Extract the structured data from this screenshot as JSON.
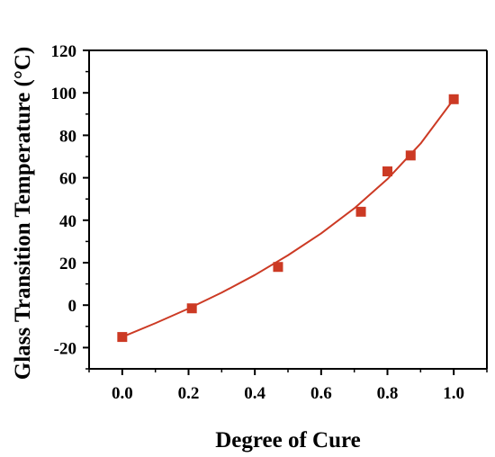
{
  "chart_data": {
    "type": "scatter",
    "title": "",
    "xlabel": "Degree of Cure",
    "ylabel": "Glass Transition Temperature (°C)",
    "xlim": [
      -0.1,
      1.1
    ],
    "ylim": [
      -30,
      120
    ],
    "x_ticks": [
      "0.0",
      "0.2",
      "0.4",
      "0.6",
      "0.8",
      "1.0"
    ],
    "y_ticks": [
      "-20",
      "0",
      "20",
      "40",
      "60",
      "80",
      "100",
      "120"
    ],
    "grid": false,
    "legend": "none",
    "series": [
      {
        "kind": "points",
        "marker": "square",
        "color": "#cc3a24",
        "x": [
          0.0,
          0.21,
          0.47,
          0.72,
          0.8,
          0.87,
          1.0
        ],
        "y": [
          -15,
          -1.5,
          18,
          44,
          63,
          70.5,
          97
        ]
      },
      {
        "kind": "fit-curve",
        "color": "#cc3a24",
        "x": [
          0.0,
          0.1,
          0.2,
          0.3,
          0.4,
          0.5,
          0.6,
          0.7,
          0.8,
          0.9,
          1.0
        ],
        "y": [
          -15,
          -8.5,
          -1.6,
          5.9,
          14.2,
          23.5,
          33.8,
          45.6,
          59.4,
          76.1,
          97.0
        ]
      }
    ]
  }
}
